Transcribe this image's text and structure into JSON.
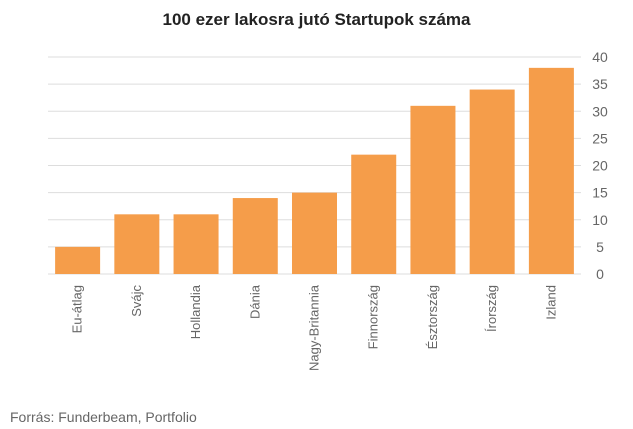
{
  "chart_data": {
    "type": "bar",
    "title": "100 ezer lakosra jutó Startupok száma",
    "categories": [
      "Eu-átlag",
      "Svájc",
      "Hollandia",
      "Dánia",
      "Nagy-Britannia",
      "Finnország",
      "Észtország",
      "Írország",
      "Izland"
    ],
    "values": [
      5,
      11,
      11,
      14,
      15,
      22,
      31,
      34,
      38
    ],
    "ylim": [
      0,
      40
    ],
    "yticks": [
      0,
      5,
      10,
      15,
      20,
      25,
      30,
      35,
      40
    ],
    "xlabel": "",
    "ylabel": "",
    "y_axis_position": "right",
    "grid": true,
    "legend": "none",
    "bar_color": "#F59D4A",
    "grid_color": "#DDDDDD",
    "tick_color": "#666666"
  },
  "footer": {
    "source": "Forrás: Funderbeam, Portfolio"
  }
}
